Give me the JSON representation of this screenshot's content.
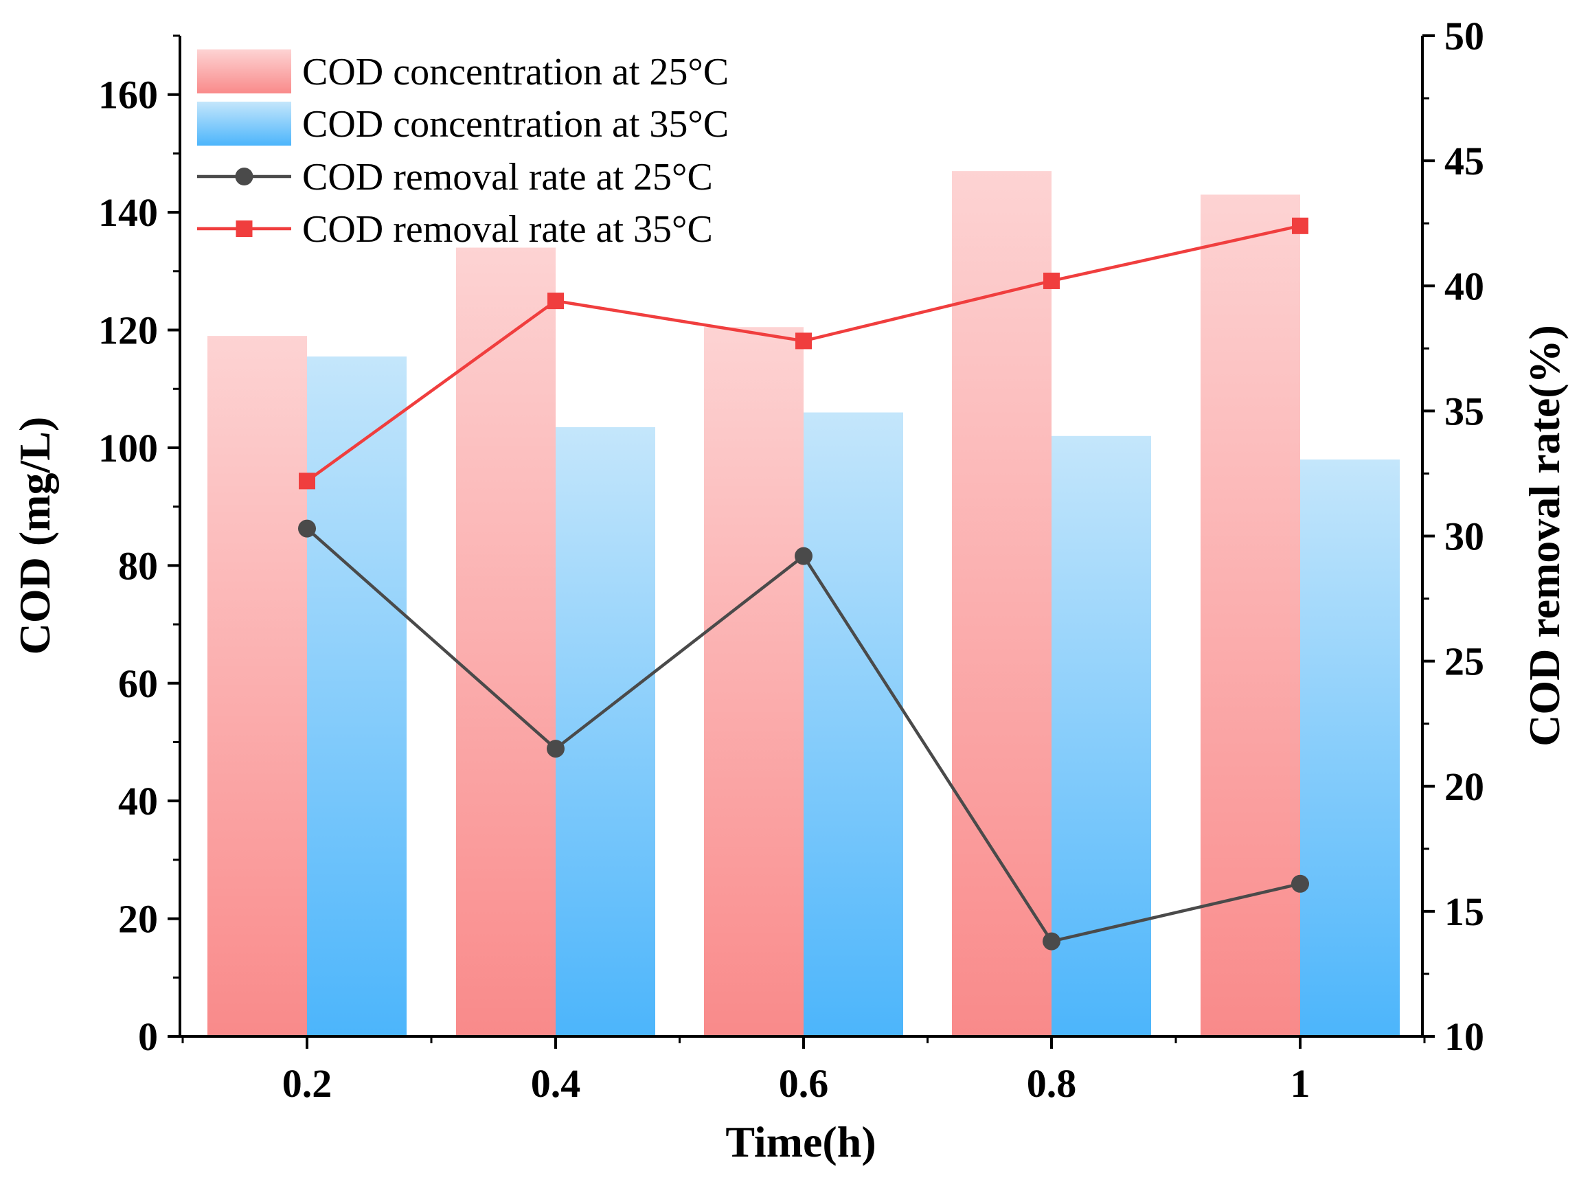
{
  "chart_data": {
    "type": "bar",
    "categories": [
      "0.2",
      "0.4",
      "0.6",
      "0.8",
      "1"
    ],
    "xlabel": "Time(h)",
    "ylabel": "COD (mg/L)",
    "y2label": "COD removal rate(%)",
    "ylim": [
      0,
      170
    ],
    "y2lim": [
      10,
      50
    ],
    "yticks": [
      0,
      20,
      40,
      60,
      80,
      100,
      120,
      140,
      160
    ],
    "y2ticks": [
      10,
      15,
      20,
      25,
      30,
      35,
      40,
      45,
      50
    ],
    "legend_position": "top-left",
    "series": [
      {
        "name": "COD concentration at 25°C",
        "kind": "bar",
        "axis": "left",
        "values": [
          119,
          134,
          120.5,
          147,
          143
        ],
        "color_top": "#fdd3d3",
        "color_bottom": "#f98a8a"
      },
      {
        "name": "COD concentration at 35°C",
        "kind": "bar",
        "axis": "left",
        "values": [
          115.5,
          103.5,
          106,
          102,
          98
        ],
        "color_top": "#c4e6fb",
        "color_bottom": "#4cb5fb"
      },
      {
        "name": "COD removal rate at 25°C",
        "kind": "line",
        "marker": "circle",
        "axis": "right",
        "values": [
          30.3,
          21.5,
          29.2,
          13.8,
          16.1
        ],
        "color": "#4a4a4a"
      },
      {
        "name": "COD removal rate at 35°C",
        "kind": "line",
        "marker": "square",
        "axis": "right",
        "values": [
          32.2,
          39.4,
          37.8,
          40.2,
          42.4
        ],
        "color": "#f03e3e"
      }
    ]
  }
}
